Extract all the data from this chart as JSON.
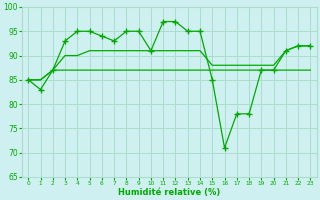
{
  "x": [
    0,
    1,
    2,
    3,
    4,
    5,
    6,
    7,
    8,
    9,
    10,
    11,
    12,
    13,
    14,
    15,
    16,
    17,
    18,
    19,
    20,
    21,
    22,
    23
  ],
  "line_max": [
    85,
    83,
    87,
    93,
    95,
    95,
    94,
    93,
    95,
    95,
    91,
    97,
    97,
    95,
    95,
    85,
    71,
    78,
    78,
    87,
    87,
    91,
    92,
    92
  ],
  "line_mean": [
    85,
    85,
    87,
    90,
    90,
    91,
    91,
    91,
    91,
    91,
    91,
    91,
    91,
    91,
    91,
    88,
    88,
    88,
    88,
    88,
    88,
    91,
    92,
    92
  ],
  "line_min": [
    85,
    85,
    87,
    87,
    87,
    87,
    87,
    87,
    87,
    87,
    87,
    87,
    87,
    87,
    87,
    87,
    87,
    87,
    87,
    87,
    87,
    87,
    87,
    87
  ],
  "ylim": [
    65,
    100
  ],
  "xlim": [
    -0.5,
    23.5
  ],
  "yticks": [
    65,
    70,
    75,
    80,
    85,
    90,
    95,
    100
  ],
  "xticks": [
    0,
    1,
    2,
    3,
    4,
    5,
    6,
    7,
    8,
    9,
    10,
    11,
    12,
    13,
    14,
    15,
    16,
    17,
    18,
    19,
    20,
    21,
    22,
    23
  ],
  "xlabel": "Humidité relative (%)",
  "line_color": "#00aa00",
  "bg_color": "#cff0f0",
  "grid_color": "#aaddcc",
  "title": ""
}
